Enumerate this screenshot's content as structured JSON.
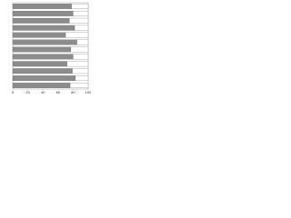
{
  "chart_data": {
    "type": "stacked-barh",
    "categories": [
      null,
      null,
      null,
      null,
      null,
      null,
      null,
      null,
      null,
      null,
      null,
      null
    ],
    "series": [
      {
        "color": "#8c8c8c",
        "values": [
          78,
          80,
          75,
          82,
          70,
          85,
          77,
          80,
          72,
          79,
          83,
          76
        ]
      },
      {
        "color": "#ffffff",
        "values": [
          22,
          20,
          25,
          18,
          30,
          15,
          23,
          20,
          28,
          21,
          17,
          24
        ]
      }
    ],
    "xlim": [
      0,
      100
    ],
    "xticks": [
      0,
      20,
      40,
      60,
      80,
      100
    ]
  }
}
